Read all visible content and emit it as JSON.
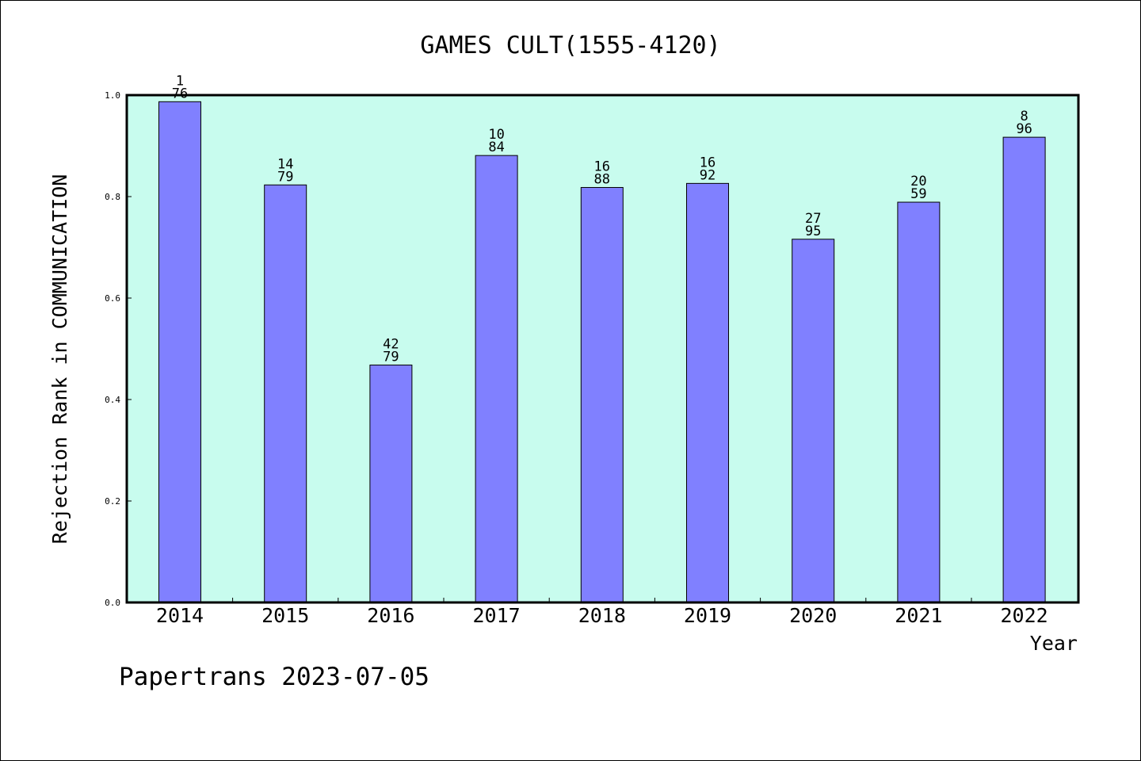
{
  "chart_data": {
    "type": "bar",
    "title": "GAMES CULT(1555-4120)",
    "xlabel": "Year",
    "ylabel": "Rejection Rank in COMMUNICATION",
    "ylim": [
      0,
      1.0
    ],
    "yticks": [
      "0.0",
      "0.2",
      "0.4",
      "0.6",
      "0.8",
      "1.0"
    ],
    "categories": [
      "2014",
      "2015",
      "2016",
      "2017",
      "2018",
      "2019",
      "2020",
      "2021",
      "2022"
    ],
    "values": [
      0.987,
      0.823,
      0.468,
      0.881,
      0.818,
      0.826,
      0.716,
      0.789,
      0.917
    ],
    "labels_top": [
      "1",
      "14",
      "42",
      "10",
      "16",
      "16",
      "27",
      "20",
      "8"
    ],
    "labels_bottom": [
      "76",
      "79",
      "79",
      "84",
      "88",
      "92",
      "95",
      "59",
      "96"
    ],
    "colors": {
      "plot_bg": "#c8fcee",
      "bar": "#8080ff",
      "axis": "#000000"
    }
  },
  "footer": "Papertrans 2023-07-05"
}
